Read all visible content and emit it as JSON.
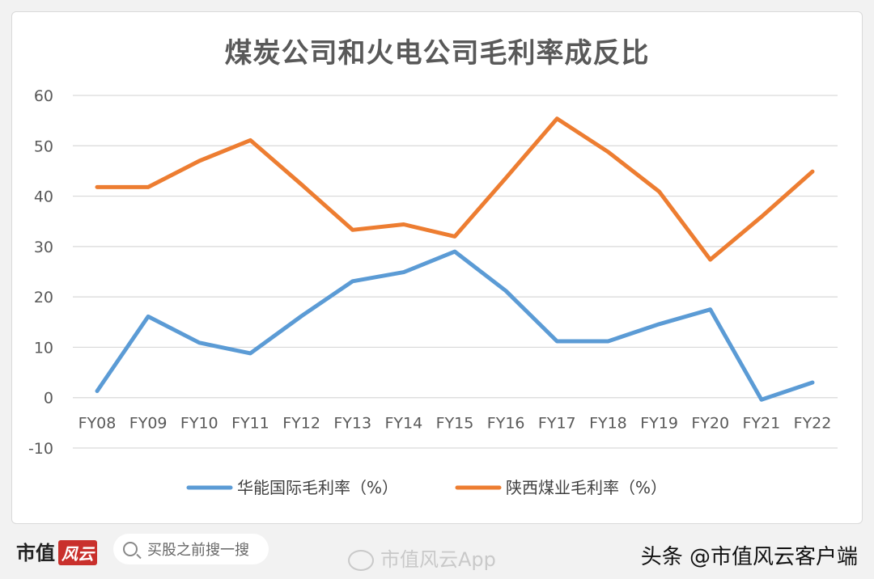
{
  "chart_data": {
    "type": "line",
    "title": "煤炭公司和火电公司毛利率成反比",
    "categories": [
      "FY08",
      "FY09",
      "FY10",
      "FY11",
      "FY12",
      "FY13",
      "FY14",
      "FY15",
      "FY16",
      "FY17",
      "FY18",
      "FY19",
      "FY20",
      "FY21",
      "FY22"
    ],
    "ylim": [
      -10,
      60
    ],
    "yticks": [
      -10,
      0,
      10,
      20,
      30,
      40,
      50,
      60
    ],
    "grid": true,
    "legend_position": "bottom",
    "series": [
      {
        "name": "华能国际毛利率（%）",
        "color": "#5b9bd5",
        "values": [
          1.3,
          16.1,
          10.9,
          8.8,
          16.2,
          23.1,
          24.9,
          29.0,
          21.2,
          11.2,
          11.2,
          14.6,
          17.5,
          -0.4,
          3.0
        ]
      },
      {
        "name": "陕西煤业毛利率（%）",
        "color": "#ed7d31",
        "values": [
          41.8,
          41.8,
          47.0,
          51.1,
          42.3,
          33.3,
          34.4,
          32.0,
          43.6,
          55.4,
          48.8,
          40.9,
          27.4,
          35.9,
          44.9
        ]
      }
    ]
  },
  "footer": {
    "brand": "市值",
    "brand_badge": "风云",
    "search_text": "买股之前搜一搜",
    "watermark_app": "市值风云App",
    "source": "头条 @市值风云客户端"
  }
}
